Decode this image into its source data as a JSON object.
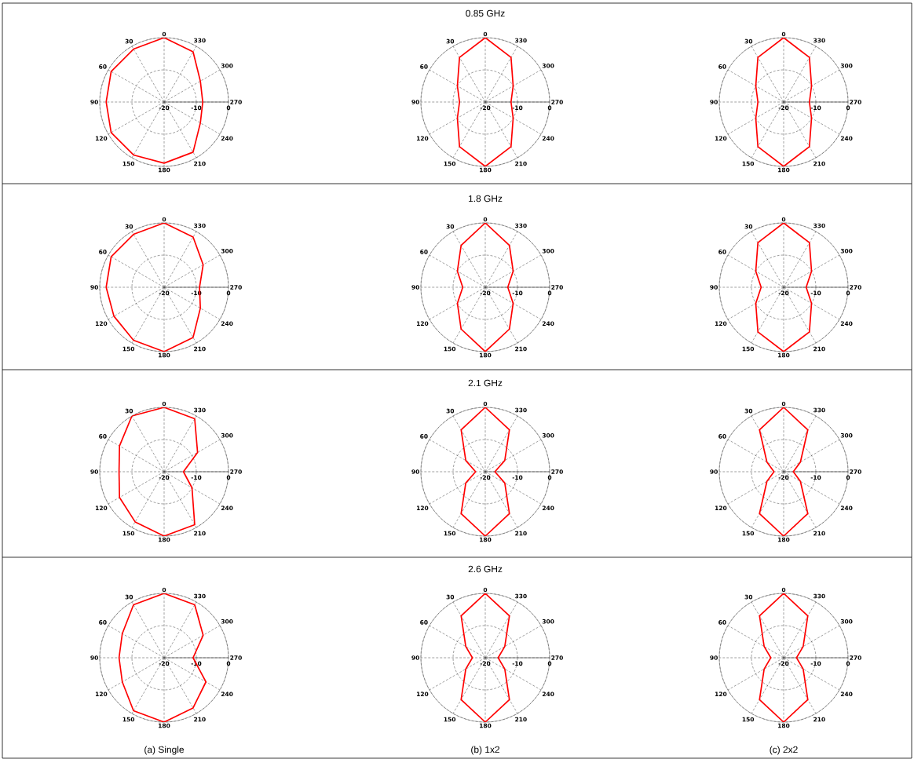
{
  "chart_data": [
    {
      "type": "radar",
      "categories": [
        "0",
        "330",
        "300",
        "270",
        "240",
        "210",
        "180",
        "150",
        "120",
        "90",
        "60",
        "30"
      ],
      "ylim": [
        -20,
        0
      ],
      "yticks": [
        -20,
        -10,
        0
      ],
      "grid": true,
      "series": [
        {
          "color": "#ff0000",
          "values": [
            0,
            -2,
            -7,
            -8,
            -7,
            -2,
            -1,
            -1,
            -1,
            -2,
            -1,
            -1
          ]
        }
      ]
    },
    {
      "type": "radar",
      "title": "0.85 GHz",
      "categories": [
        "0",
        "330",
        "300",
        "270",
        "240",
        "210",
        "180",
        "150",
        "120",
        "90",
        "60",
        "30"
      ],
      "ylim": [
        -20,
        0
      ],
      "yticks": [
        -20,
        -10,
        0
      ],
      "grid": true,
      "series": [
        {
          "color": "#ff0000",
          "values": [
            0,
            -4,
            -10,
            -12,
            -10,
            -4,
            0,
            -4,
            -10,
            -12,
            -10,
            -4
          ]
        }
      ]
    },
    {
      "type": "radar",
      "categories": [
        "0",
        "330",
        "300",
        "270",
        "240",
        "210",
        "180",
        "150",
        "120",
        "90",
        "60",
        "30"
      ],
      "ylim": [
        -20,
        0
      ],
      "yticks": [
        -20,
        -10,
        0
      ],
      "grid": true,
      "series": [
        {
          "color": "#ff0000",
          "values": [
            0,
            -4,
            -10,
            -12,
            -10,
            -4,
            0,
            -4,
            -10,
            -12,
            -10,
            -4
          ]
        }
      ]
    },
    {
      "type": "radar",
      "categories": [
        "0",
        "330",
        "300",
        "270",
        "240",
        "210",
        "180",
        "150",
        "120",
        "90",
        "60",
        "30"
      ],
      "ylim": [
        -20,
        0
      ],
      "yticks": [
        -20,
        -10,
        0
      ],
      "grid": true,
      "series": [
        {
          "color": "#ff0000",
          "values": [
            0,
            -2,
            -6,
            -9,
            -7,
            -2,
            0,
            -1,
            -2,
            -2,
            -1,
            -1
          ]
        }
      ]
    },
    {
      "type": "radar",
      "title": "1.8 GHz",
      "categories": [
        "0",
        "330",
        "300",
        "270",
        "240",
        "210",
        "180",
        "150",
        "120",
        "90",
        "60",
        "30"
      ],
      "ylim": [
        -20,
        0
      ],
      "yticks": [
        -20,
        -10,
        0
      ],
      "grid": true,
      "series": [
        {
          "color": "#ff0000",
          "values": [
            0,
            -5,
            -10,
            -13,
            -10,
            -5,
            0,
            -5,
            -10,
            -13,
            -10,
            -5
          ]
        }
      ]
    },
    {
      "type": "radar",
      "categories": [
        "0",
        "330",
        "300",
        "270",
        "240",
        "210",
        "180",
        "150",
        "120",
        "90",
        "60",
        "30"
      ],
      "ylim": [
        -20,
        0
      ],
      "yticks": [
        -20,
        -10,
        0
      ],
      "grid": true,
      "series": [
        {
          "color": "#ff0000",
          "values": [
            0,
            -4,
            -10,
            -13,
            -10,
            -4,
            0,
            -4,
            -10,
            -13,
            -10,
            -4
          ]
        }
      ]
    },
    {
      "type": "radar",
      "categories": [
        "0",
        "330",
        "300",
        "270",
        "240",
        "210",
        "180",
        "150",
        "120",
        "90",
        "60",
        "30"
      ],
      "ylim": [
        -20,
        0
      ],
      "yticks": [
        -20,
        -10,
        0
      ],
      "grid": true,
      "series": [
        {
          "color": "#ff0000",
          "values": [
            0,
            -1,
            -8,
            -14,
            -10,
            -1,
            0,
            -2,
            -4,
            -6,
            -4,
            0
          ]
        }
      ]
    },
    {
      "type": "radar",
      "title": "2.1 GHz",
      "categories": [
        "0",
        "330",
        "300",
        "270",
        "240",
        "210",
        "180",
        "150",
        "120",
        "90",
        "60",
        "30"
      ],
      "ylim": [
        -20,
        0
      ],
      "yticks": [
        -20,
        -10,
        0
      ],
      "grid": true,
      "series": [
        {
          "color": "#ff0000",
          "values": [
            0,
            -5,
            -13,
            -17,
            -13,
            -5,
            0,
            -5,
            -13,
            -17,
            -13,
            -5
          ]
        }
      ]
    },
    {
      "type": "radar",
      "categories": [
        "0",
        "330",
        "300",
        "270",
        "240",
        "210",
        "180",
        "150",
        "120",
        "90",
        "60",
        "30"
      ],
      "ylim": [
        -20,
        0
      ],
      "yticks": [
        -20,
        -10,
        0
      ],
      "grid": true,
      "series": [
        {
          "color": "#ff0000",
          "values": [
            0,
            -5,
            -14,
            -17,
            -14,
            -5,
            0,
            -5,
            -14,
            -17,
            -14,
            -5
          ]
        }
      ]
    },
    {
      "type": "radar",
      "xlabel": "(a) Single",
      "categories": [
        "0",
        "330",
        "300",
        "270",
        "240",
        "210",
        "180",
        "150",
        "120",
        "90",
        "60",
        "30"
      ],
      "ylim": [
        -20,
        0
      ],
      "yticks": [
        -20,
        -10,
        0
      ],
      "grid": true,
      "series": [
        {
          "color": "#ff0000",
          "values": [
            0,
            -1,
            -6,
            -11,
            -5,
            -2,
            0,
            -1,
            -5,
            -6,
            -5,
            -1
          ]
        }
      ]
    },
    {
      "type": "radar",
      "title": "2.6 GHz",
      "xlabel": "(b) 1x2",
      "categories": [
        "0",
        "330",
        "300",
        "270",
        "240",
        "210",
        "180",
        "150",
        "120",
        "90",
        "60",
        "30"
      ],
      "ylim": [
        -20,
        0
      ],
      "yticks": [
        -20,
        -10,
        0
      ],
      "grid": true,
      "series": [
        {
          "color": "#ff0000",
          "values": [
            0,
            -5,
            -13,
            -16,
            -13,
            -5,
            0,
            -5,
            -13,
            -16,
            -13,
            -5
          ]
        }
      ]
    },
    {
      "type": "radar",
      "xlabel": "(c) 2x2",
      "categories": [
        "0",
        "330",
        "300",
        "270",
        "240",
        "210",
        "180",
        "150",
        "120",
        "90",
        "60",
        "30"
      ],
      "ylim": [
        -20,
        0
      ],
      "yticks": [
        -20,
        -10,
        0
      ],
      "grid": true,
      "series": [
        {
          "color": "#ff0000",
          "values": [
            0,
            -5,
            -13,
            -16,
            -13,
            -5,
            0,
            -5,
            -13,
            -16,
            -13,
            -5
          ]
        }
      ]
    }
  ]
}
